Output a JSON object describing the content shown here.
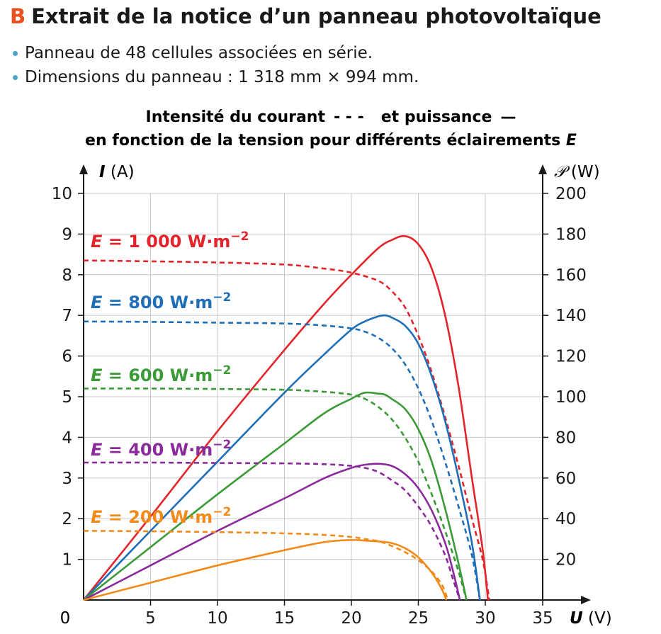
{
  "header": {
    "letter": "B",
    "title": "Extrait de la notice d’un panneau photovoltaïque",
    "bullets": [
      "Panneau de 48 cellules associées en série.",
      "Dimensions du panneau : 1 318 mm × 994 mm."
    ]
  },
  "colors": {
    "accent": "#e8501c",
    "bullet": "#4aa3c8",
    "E1000": "#e3242b",
    "E800": "#1f6fb8",
    "E600": "#3a9a35",
    "E400": "#8b2a9a",
    "E200": "#f28a1a"
  },
  "chart_data": {
    "type": "line",
    "title_line1_a": "Intensité du courant",
    "title_line1_b": "et puissance",
    "title_line2": "en fonction de la tension pour différents éclairements",
    "title_symbol": "E",
    "xlabel": "U",
    "xunit": "(V)",
    "ylabel_left": "I",
    "yunit_left": "(A)",
    "ylabel_right": "𝒫",
    "yunit_right": "(W)",
    "origin_label": "0",
    "xlim": [
      0,
      35
    ],
    "ylim_left": [
      0,
      10
    ],
    "ylim_right": [
      0,
      200
    ],
    "x_ticks": [
      5,
      10,
      15,
      20,
      25,
      30,
      35
    ],
    "y_left_ticks": [
      1,
      2,
      3,
      4,
      5,
      6,
      7,
      8,
      9,
      10
    ],
    "y_right_ticks": [
      20,
      40,
      60,
      80,
      100,
      120,
      140,
      160,
      180,
      200
    ],
    "grid": true,
    "legend": "inline labels",
    "series": [
      {
        "name": "E = 1 000 W·m−2",
        "label_prefix": "E",
        "label_rest": " = 1 000 W·m",
        "label_exp": "−2",
        "color_key": "E1000",
        "current": [
          [
            0,
            8.35
          ],
          [
            5,
            8.33
          ],
          [
            10,
            8.3
          ],
          [
            15,
            8.25
          ],
          [
            18,
            8.15
          ],
          [
            20,
            8.05
          ],
          [
            22,
            7.85
          ],
          [
            23,
            7.6
          ],
          [
            24,
            7.2
          ],
          [
            25,
            6.5
          ],
          [
            26,
            5.6
          ],
          [
            27,
            4.5
          ],
          [
            28,
            3.3
          ],
          [
            29,
            2.0
          ],
          [
            29.8,
            1.0
          ],
          [
            30.3,
            0
          ]
        ],
        "power": [
          [
            0,
            0
          ],
          [
            5,
            41
          ],
          [
            10,
            83
          ],
          [
            15,
            123
          ],
          [
            18,
            146
          ],
          [
            20,
            160
          ],
          [
            22,
            173
          ],
          [
            23,
            177
          ],
          [
            24,
            179
          ],
          [
            25,
            175
          ],
          [
            26,
            163
          ],
          [
            27,
            140
          ],
          [
            28,
            105
          ],
          [
            29,
            60
          ],
          [
            29.8,
            25
          ],
          [
            30.2,
            0
          ]
        ]
      },
      {
        "name": "E = 800 W·m−2",
        "label_prefix": "E",
        "label_rest": " = 800 W·m",
        "label_exp": "−2",
        "color_key": "E800",
        "current": [
          [
            0,
            6.85
          ],
          [
            5,
            6.84
          ],
          [
            10,
            6.82
          ],
          [
            15,
            6.8
          ],
          [
            18,
            6.75
          ],
          [
            20,
            6.68
          ],
          [
            21,
            6.6
          ],
          [
            22,
            6.45
          ],
          [
            23,
            6.2
          ],
          [
            24,
            5.8
          ],
          [
            25,
            5.2
          ],
          [
            26,
            4.4
          ],
          [
            27,
            3.4
          ],
          [
            28,
            2.3
          ],
          [
            29,
            1.1
          ],
          [
            29.6,
            0
          ]
        ],
        "power": [
          [
            0,
            0
          ],
          [
            5,
            34
          ],
          [
            10,
            68
          ],
          [
            15,
            102
          ],
          [
            18,
            121
          ],
          [
            20,
            133
          ],
          [
            21,
            137
          ],
          [
            22,
            139.5
          ],
          [
            22.5,
            140
          ],
          [
            23,
            139
          ],
          [
            24,
            135
          ],
          [
            25,
            126
          ],
          [
            26,
            110
          ],
          [
            27,
            88
          ],
          [
            28,
            60
          ],
          [
            29,
            28
          ],
          [
            29.6,
            0
          ]
        ]
      },
      {
        "name": "E = 600 W·m−2",
        "label_prefix": "E",
        "label_rest": " = 600 W·m",
        "label_exp": "−2",
        "color_key": "E600",
        "current": [
          [
            0,
            5.2
          ],
          [
            5,
            5.2
          ],
          [
            10,
            5.19
          ],
          [
            15,
            5.17
          ],
          [
            18,
            5.12
          ],
          [
            20,
            5.05
          ],
          [
            21,
            4.95
          ],
          [
            22,
            4.75
          ],
          [
            23,
            4.45
          ],
          [
            24,
            4.0
          ],
          [
            25,
            3.4
          ],
          [
            26,
            2.6
          ],
          [
            27,
            1.7
          ],
          [
            28,
            0.7
          ],
          [
            28.6,
            0
          ]
        ],
        "power": [
          [
            0,
            0
          ],
          [
            5,
            26
          ],
          [
            10,
            52
          ],
          [
            15,
            77
          ],
          [
            18,
            92
          ],
          [
            20,
            99
          ],
          [
            21,
            102
          ],
          [
            22,
            101.5
          ],
          [
            22.5,
            101
          ],
          [
            23,
            99
          ],
          [
            24,
            94
          ],
          [
            25,
            84
          ],
          [
            26,
            68
          ],
          [
            27,
            45
          ],
          [
            28,
            18
          ],
          [
            28.6,
            0
          ]
        ]
      },
      {
        "name": "E = 400 W·m−2",
        "label_prefix": "E",
        "label_rest": " = 400 W·m",
        "label_exp": "−2",
        "color_key": "E400",
        "current": [
          [
            0,
            3.38
          ],
          [
            5,
            3.38
          ],
          [
            10,
            3.37
          ],
          [
            15,
            3.36
          ],
          [
            18,
            3.34
          ],
          [
            20,
            3.3
          ],
          [
            21,
            3.25
          ],
          [
            22,
            3.15
          ],
          [
            23,
            2.95
          ],
          [
            24,
            2.7
          ],
          [
            25,
            2.3
          ],
          [
            26,
            1.8
          ],
          [
            27,
            1.1
          ],
          [
            27.6,
            0.5
          ],
          [
            28.1,
            0
          ]
        ],
        "power": [
          [
            0,
            0
          ],
          [
            5,
            17
          ],
          [
            10,
            34
          ],
          [
            15,
            50
          ],
          [
            18,
            60
          ],
          [
            20,
            65
          ],
          [
            21,
            66.5
          ],
          [
            22,
            67
          ],
          [
            23,
            66
          ],
          [
            24,
            62
          ],
          [
            25,
            55
          ],
          [
            26,
            44
          ],
          [
            27,
            28
          ],
          [
            27.6,
            14
          ],
          [
            28.1,
            0
          ]
        ]
      },
      {
        "name": "E = 200 W·m−2",
        "label_prefix": "E",
        "label_rest": " = 200 W·m",
        "label_exp": "−2",
        "color_key": "E200",
        "current": [
          [
            0,
            1.7
          ],
          [
            5,
            1.69
          ],
          [
            10,
            1.67
          ],
          [
            15,
            1.64
          ],
          [
            18,
            1.6
          ],
          [
            20,
            1.55
          ],
          [
            21,
            1.5
          ],
          [
            22,
            1.45
          ],
          [
            23,
            1.33
          ],
          [
            24,
            1.18
          ],
          [
            25,
            0.98
          ],
          [
            26,
            0.7
          ],
          [
            26.8,
            0.35
          ],
          [
            27.2,
            0
          ]
        ],
        "power": [
          [
            0,
            0
          ],
          [
            5,
            8.5
          ],
          [
            10,
            17
          ],
          [
            15,
            24.5
          ],
          [
            18,
            28.5
          ],
          [
            20,
            29.5
          ],
          [
            21,
            29.2
          ],
          [
            22,
            28.8
          ],
          [
            23,
            28
          ],
          [
            24,
            25.5
          ],
          [
            25,
            21
          ],
          [
            26,
            13.5
          ],
          [
            26.7,
            6
          ],
          [
            27.1,
            0
          ]
        ]
      }
    ]
  }
}
